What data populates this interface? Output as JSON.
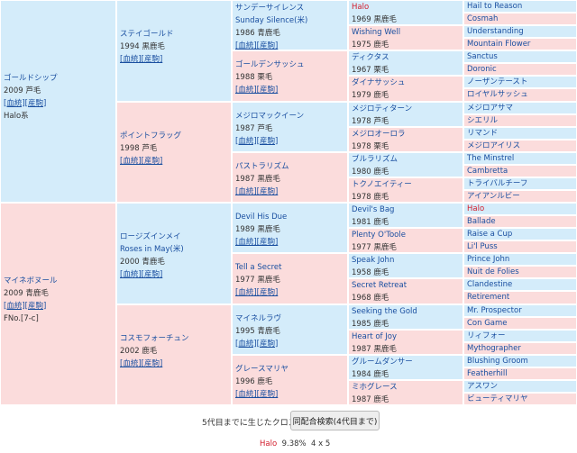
{
  "pedigree": {
    "g1": [
      {
        "name": "ゴールドシップ",
        "year": "2009 芦毛",
        "link": "[血統][産駒]",
        "extra": "Halo系"
      },
      {
        "name": "マイネボヌール",
        "year": "2009 青鹿毛",
        "link": "[血統][産駒]",
        "extra": "FNo.[7-c]"
      }
    ],
    "g2": [
      {
        "name": "ステイゴールド",
        "year": "1994 黒鹿毛",
        "link": "[血統][産駒]"
      },
      {
        "name": "ポイントフラッグ",
        "year": "1998 芦毛",
        "link": "[血統][産駒]"
      },
      {
        "name": "ロージズインメイ",
        "name2": "Roses in May(米)",
        "year": "2000 青鹿毛",
        "link": "[血統][産駒]"
      },
      {
        "name": "コスモフォーチュン",
        "year": "2002 鹿毛",
        "link": "[血統][産駒]"
      }
    ],
    "g3": [
      {
        "name": "サンデーサイレンス",
        "name2": "Sunday Silence(米)",
        "year": "1986 青鹿毛",
        "link": "[血統][産駒]"
      },
      {
        "name": "ゴールデンサッシュ",
        "year": "1988 栗毛",
        "link": "[血統][産駒]"
      },
      {
        "name": "メジロマックイーン",
        "year": "1987 芦毛",
        "link": "[血統][産駒]"
      },
      {
        "name": "パストラリズム",
        "year": "1987 黒鹿毛",
        "link": "[血統][産駒]"
      },
      {
        "name": "Devil His Due",
        "year": "1989 黒鹿毛",
        "link": "[血統][産駒]"
      },
      {
        "name": "Tell a Secret",
        "year": "1977 黒鹿毛",
        "link": "[血統][産駒]"
      },
      {
        "name": "マイネルラヴ",
        "year": "1995 青鹿毛",
        "link": "[血統][産駒]"
      },
      {
        "name": "グレースマリヤ",
        "year": "1996 鹿毛",
        "link": "[血統][産駒]"
      }
    ],
    "g4": [
      {
        "name": "Halo",
        "year": "1969 黒鹿毛"
      },
      {
        "name": "Wishing Well",
        "year": "1975 鹿毛"
      },
      {
        "name": "ディクタス",
        "year": "1967 栗毛"
      },
      {
        "name": "ダイナサッシュ",
        "year": "1979 鹿毛"
      },
      {
        "name": "メジロティターン",
        "year": "1978 芦毛"
      },
      {
        "name": "メジロオーロラ",
        "year": "1978 栗毛"
      },
      {
        "name": "ブルラリズム",
        "year": "1980 鹿毛"
      },
      {
        "name": "トクノエイティー",
        "year": "1978 鹿毛"
      },
      {
        "name": "Devil's Bag",
        "year": "1981 鹿毛"
      },
      {
        "name": "Plenty O'Toole",
        "year": "1977 黒鹿毛"
      },
      {
        "name": "Speak John",
        "year": "1958 鹿毛"
      },
      {
        "name": "Secret Retreat",
        "year": "1968 鹿毛"
      },
      {
        "name": "Seeking the Gold",
        "year": "1985 鹿毛"
      },
      {
        "name": "Heart of Joy",
        "year": "1987 黒鹿毛"
      },
      {
        "name": "グルームダンサー",
        "year": "1984 鹿毛"
      },
      {
        "name": "ミホグレース",
        "year": "1987 鹿毛"
      }
    ],
    "g5": [
      "Hail to Reason",
      "Cosmah",
      "Understanding",
      "Mountain Flower",
      "Sanctus",
      "Doronic",
      "ノーザンテースト",
      "ロイヤルサッシュ",
      "メジロアサマ",
      "シエリル",
      "リマンド",
      "メジロアイリス",
      "The Minstrel",
      "Cambretta",
      "トライバルチーフ",
      "アイアンルビー",
      "Halo",
      "Ballade",
      "Raise a Cup",
      "Li'l Puss",
      "Prince John",
      "Nuit de Folies",
      "Clandestine",
      "Retirement",
      "Mr. Prospector",
      "Con Game",
      "リィフォー",
      "Mythographer",
      "Blushing Groom",
      "Featherhill",
      "アスワン",
      "ビューティマリヤ"
    ]
  },
  "footer": {
    "cross_label": "5代目までに生じたクロス",
    "search_button": "同配合検索(4代目まで)",
    "cross_name": "Halo",
    "cross_value": "9.38%",
    "cross_gen": "4 x 5"
  },
  "colors": {
    "male": "#d4ecfa",
    "female": "#fbdcdc",
    "link": "#1a4fa0",
    "cross": "#d21c2c"
  }
}
